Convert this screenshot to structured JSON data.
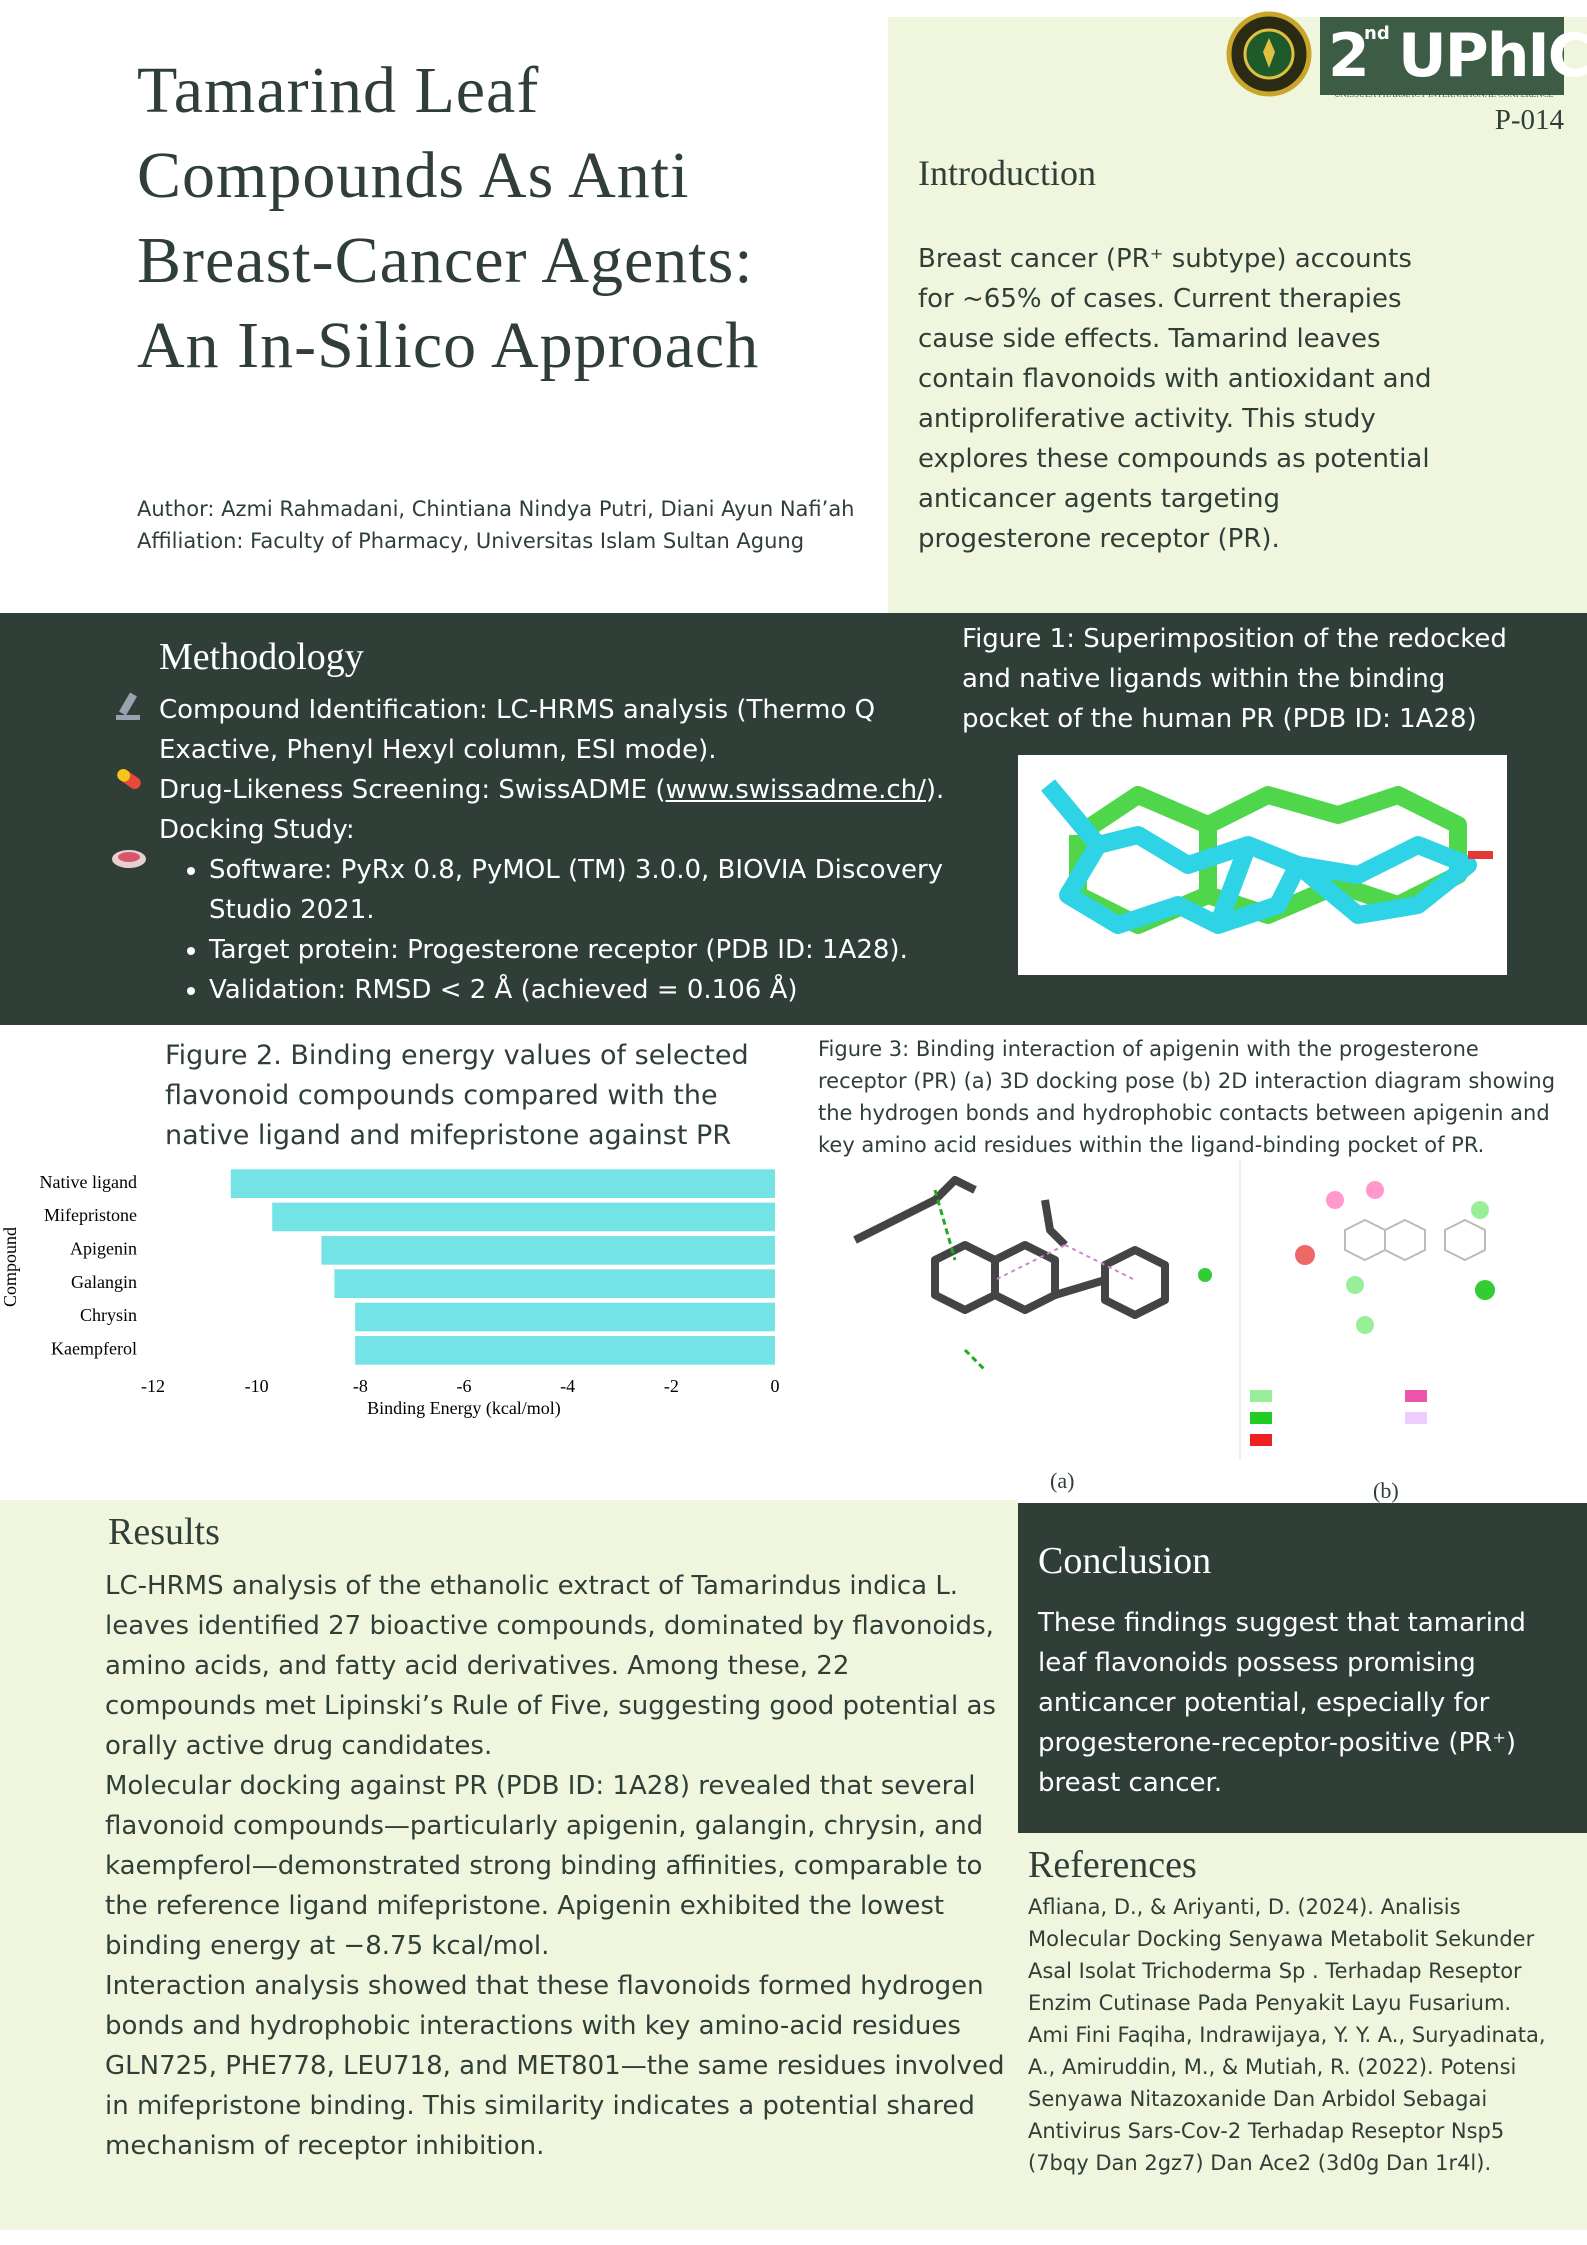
{
  "header": {
    "title": "Tamarind Leaf Compounds As Anti Breast-Cancer Agents: An In-Silico Approach",
    "author": "Author: Azmi Rahmadani, Chintiana Nindya Putri, Diani Ayun Nafi’ah",
    "affiliation": "Affiliation: Faculty of Pharmacy, Universitas Islam Sultan Agung",
    "logo": {
      "edition": "2",
      "edition_suffix": "nd",
      "name": "UPhIC",
      "subtitle": "UNISSULA PHARMACY INTERNATIONAL CONFERENCE"
    },
    "poster_id": "P-014"
  },
  "introduction": {
    "heading": "Introduction",
    "text": "Breast cancer (PR⁺ subtype) accounts for ~65% of cases. Current therapies cause side effects. Tamarind leaves contain flavonoids with antioxidant and antiproliferative activity. This study explores these compounds as potential anticancer agents targeting progesterone receptor (PR)."
  },
  "methodology": {
    "heading": "Methodology",
    "items": [
      {
        "text": "Compound Identification: LC-HRMS analysis (Thermo Q Exactive, Phenyl Hexyl column, ESI mode)."
      },
      {
        "text_before": "Drug-Likeness Screening: SwissADME (",
        "link": "www.swissadme.ch/",
        "text_after": ")."
      },
      {
        "text": "Docking Study:",
        "subitems": [
          "Software: PyRx 0.8, PyMOL (TM) 3.0.0, BIOVIA Discovery Studio 2021.",
          "Target protein: Progesterone receptor (PDB ID: 1A28).",
          "Validation: RMSD < 2 Å (achieved = 0.106 Å)"
        ]
      }
    ]
  },
  "figure1": {
    "caption": "Figure 1: Superimposition of the redocked and native ligands within the binding pocket of the human PR (PDB ID: 1A28)"
  },
  "chart_data": {
    "type": "bar",
    "orientation": "horizontal",
    "title": "Figure 2. Binding energy values of selected flavonoid compounds compared with the native ligand and mifepristone against PR",
    "categories": [
      "Native ligand",
      "Mifepristone",
      "Apigenin",
      "Galangin",
      "Chrysin",
      "Kaempferol"
    ],
    "values": [
      -10.5,
      -9.7,
      -8.75,
      -8.5,
      -8.1,
      -8.1
    ],
    "color": "#74e3e6",
    "x_label": "Binding Energy (kcal/mol)",
    "y_label": "Compound",
    "xlim": [
      -12,
      0
    ],
    "xticks": [
      -12,
      -10,
      -8,
      -6,
      -4,
      -2,
      0
    ],
    "grid": false
  },
  "figure3": {
    "caption": "Figure 3:  Binding interaction of apigenin with the progesterone receptor (PR) (a) 3D docking pose (b) 2D interaction diagram showing the hydrogen bonds and hydrophobic contacts between apigenin and key amino acid residues within the ligand-binding pocket of PR.",
    "panel_a": "(a)",
    "panel_b": "(b)"
  },
  "results": {
    "heading": "Results",
    "paragraphs": [
      "LC-HRMS analysis of the ethanolic extract of Tamarindus indica L. leaves identified 27 bioactive compounds, dominated by flavonoids, amino acids, and fatty acid derivatives. Among these, 22 compounds met Lipinski’s Rule of Five, suggesting good potential as orally active drug candidates.",
      "Molecular docking against PR (PDB ID: 1A28) revealed that several flavonoid compounds—particularly apigenin, galangin, chrysin, and kaempferol—demonstrated strong binding affinities, comparable to the reference ligand mifepristone. Apigenin exhibited the lowest binding energy at −8.75 kcal/mol.",
      "Interaction analysis showed that these flavonoids formed hydrogen bonds and hydrophobic interactions with key amino-acid residues GLN725, PHE778, LEU718, and MET801—the same residues involved in mifepristone binding. This similarity indicates a potential shared mechanism of receptor inhibition."
    ]
  },
  "conclusion": {
    "heading": "Conclusion",
    "text": "These findings suggest that tamarind leaf flavonoids possess promising anticancer potential, especially for progesterone-receptor-positive (PR⁺) breast cancer."
  },
  "references": {
    "heading": "References",
    "entries": [
      "Afliana, D., & Ariyanti, D. (2024). Analisis Molecular Docking Senyawa Metabolit Sekunder Asal Isolat Trichoderma Sp . Terhadap Reseptor Enzim Cutinase Pada Penyakit Layu Fusarium.",
      "Ami Fini Faqiha, Indrawijaya, Y. Y. A., Suryadinata, A., Amiruddin, M., & Mutiah, R. (2022). Potensi Senyawa Nitazoxanide Dan Arbidol Sebagai Antivirus Sars-Cov-2 Terhadap Reseptor Nsp5 (7bqy Dan 2gz7) Dan Ace2 (3d0g Dan 1r4l)."
    ]
  }
}
